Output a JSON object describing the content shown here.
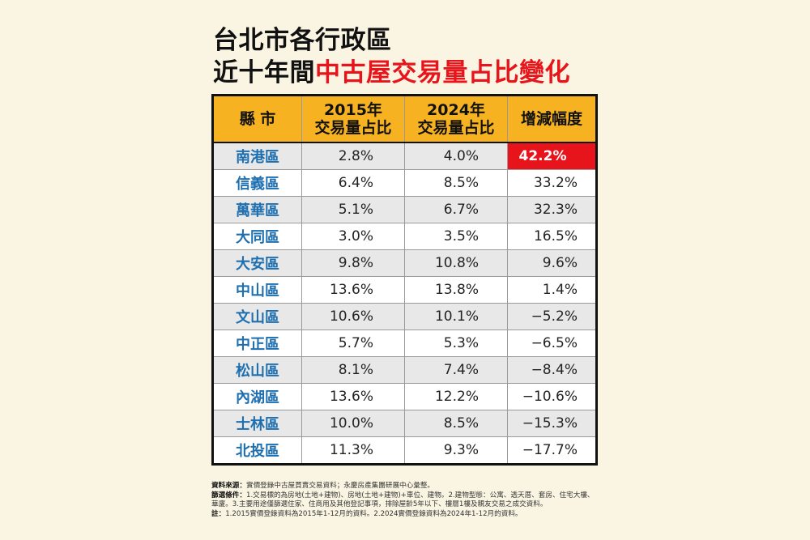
{
  "title": {
    "line1": "台北市各行政區",
    "line2_prefix": "近十年間",
    "line2_highlight": "中古屋交易量占比變化"
  },
  "chart_data": {
    "type": "table",
    "columns": [
      "縣 市",
      "2015年\n交易量占比",
      "2024年\n交易量占比",
      "增減幅度"
    ],
    "rows": [
      {
        "district": "南港區",
        "y2015": "2.8%",
        "y2024": "4.0%",
        "change": "42.2%"
      },
      {
        "district": "信義區",
        "y2015": "6.4%",
        "y2024": "8.5%",
        "change": "33.2%"
      },
      {
        "district": "萬華區",
        "y2015": "5.1%",
        "y2024": "6.7%",
        "change": "32.3%"
      },
      {
        "district": "大同區",
        "y2015": "3.0%",
        "y2024": "3.5%",
        "change": "16.5%"
      },
      {
        "district": "大安區",
        "y2015": "9.8%",
        "y2024": "10.8%",
        "change": "9.6%"
      },
      {
        "district": "中山區",
        "y2015": "13.6%",
        "y2024": "13.8%",
        "change": "1.4%"
      },
      {
        "district": "文山區",
        "y2015": "10.6%",
        "y2024": "10.1%",
        "change": "−5.2%"
      },
      {
        "district": "中正區",
        "y2015": "5.7%",
        "y2024": "5.3%",
        "change": "−6.5%"
      },
      {
        "district": "松山區",
        "y2015": "8.1%",
        "y2024": "7.4%",
        "change": "−8.4%"
      },
      {
        "district": "內湖區",
        "y2015": "13.6%",
        "y2024": "12.2%",
        "change": "−10.6%"
      },
      {
        "district": "士林區",
        "y2015": "10.0%",
        "y2024": "8.5%",
        "change": "−15.3%"
      },
      {
        "district": "北投區",
        "y2015": "11.3%",
        "y2024": "9.3%",
        "change": "−17.7%"
      }
    ],
    "highlight": {
      "row": 0,
      "column": "change",
      "color": "#e8141c"
    }
  },
  "footnotes": {
    "source_label": "資料來源：",
    "source_text": "實價登錄中古屋買賣交易資料；永慶房產集團研展中心彙整。",
    "criteria_label": "篩選條件：",
    "criteria_text": "1.交易標的為房地(土地+建物)、房地(土地+建物)+車位、建物。2.建物型態：公寓、透天厝、套房、住宅大樓、華廈。3.主要用途僅篩選住家、住商用及其他登記事項，排除屋齡5年以下、樓層1樓及親友交易之成交資料。",
    "note_label": "註：",
    "note_text": "1.2015實價登錄資料為2015年1-12月的資料。2.2024實價登錄資料為2024年1-12月的資料。"
  },
  "colors": {
    "background": "#faf5e3",
    "header": "#f7b221",
    "district": "#1d6fb0",
    "accent": "#e8141c"
  }
}
